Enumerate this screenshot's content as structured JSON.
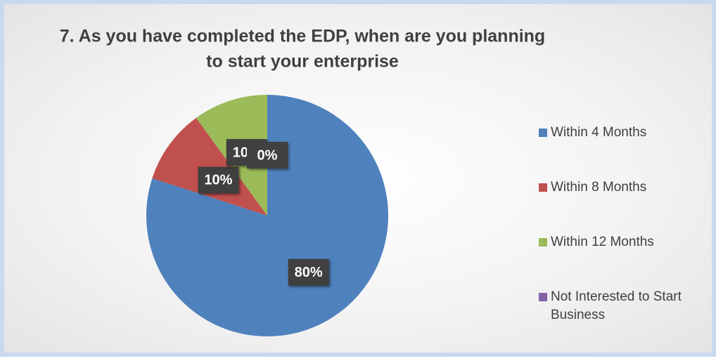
{
  "chart_data": {
    "type": "pie",
    "title": [
      "7.  As you have completed the EDP, when are you planning",
      "to start your enterprise"
    ],
    "categories": [
      "Within 4 Months",
      "Within 8 Months",
      "Within 12 Months",
      "Not Interested to Start Business"
    ],
    "values": [
      80,
      10,
      10,
      0
    ],
    "value_labels": [
      "80%",
      "10%",
      "10%",
      "0%"
    ],
    "colors": [
      "#4f81bd",
      "#c0504d",
      "#9bbb59",
      "#8064a2"
    ],
    "legend": "right"
  }
}
